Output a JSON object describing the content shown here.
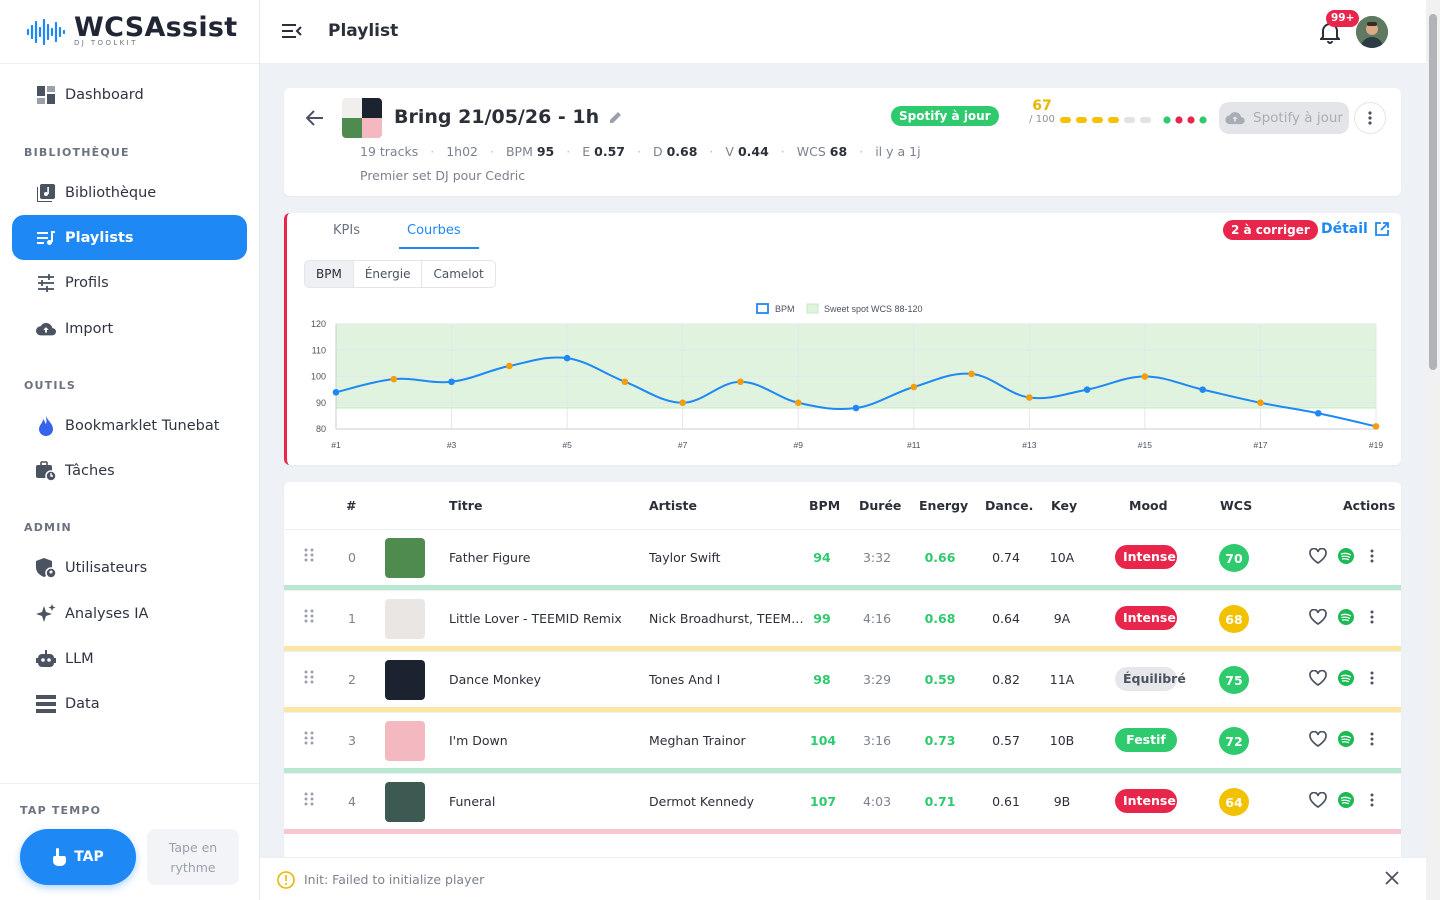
{
  "app": {
    "logo_text": "WCSAssist",
    "logo_sub": "DJ TOOLKIT"
  },
  "sidebar": {
    "items": [
      {
        "label": "Dashboard",
        "icon": "dashboard-icon"
      },
      {
        "section": "BIBLIOTHÈQUE"
      },
      {
        "label": "Bibliothèque",
        "icon": "library-icon"
      },
      {
        "label": "Playlists",
        "icon": "playlist-icon",
        "active": true
      },
      {
        "label": "Profils",
        "icon": "sliders-icon"
      },
      {
        "label": "Import",
        "icon": "cloud-upload-icon"
      },
      {
        "section": "OUTILS"
      },
      {
        "label": "Bookmarklet Tunebat",
        "icon": "flame-icon"
      },
      {
        "label": "Tâches",
        "icon": "tasks-icon"
      },
      {
        "section": "ADMIN"
      },
      {
        "label": "Utilisateurs",
        "icon": "users-icon"
      },
      {
        "label": "Analyses IA",
        "icon": "sparkles-icon"
      },
      {
        "label": "LLM",
        "icon": "robot-icon"
      },
      {
        "label": "Data",
        "icon": "data-icon"
      }
    ],
    "tap": {
      "section": "TAP TEMPO",
      "button": "TAP",
      "hint": "Tape en rythme"
    }
  },
  "topbar": {
    "title": "Playlist",
    "notif_badge": "99+"
  },
  "playlist": {
    "title": "Bring 21/05/26 - 1h",
    "tracks": "19 tracks",
    "duration": "1h02",
    "bpm_label": "BPM",
    "bpm": "95",
    "e_label": "E",
    "e": "0.57",
    "d_label": "D",
    "d": "0.68",
    "v_label": "V",
    "v": "0.44",
    "wcs_label": "WCS",
    "wcs": "68",
    "updated": "il y a 1j",
    "description": "Premier set DJ pour Cedric",
    "spotify_badge": "Spotify à jour",
    "score": "67",
    "score_max": "/ 100",
    "spotify_button": "Spotify à jour",
    "colors": {
      "yellow": "#f2c200",
      "grey": "#e0e2e6",
      "green": "#2fc96e",
      "red": "#e8254a"
    }
  },
  "chart_panel": {
    "tabs": [
      "KPIs",
      "Courbes"
    ],
    "active_tab": "Courbes",
    "fix_badge": "2 à corriger",
    "detail_link": "Détail",
    "segments": [
      "BPM",
      "Énergie",
      "Camelot"
    ],
    "active_segment": "BPM"
  },
  "chart_data": {
    "type": "line",
    "x": [
      "#1",
      "#2",
      "#3",
      "#4",
      "#5",
      "#6",
      "#7",
      "#8",
      "#9",
      "#10",
      "#11",
      "#12",
      "#13",
      "#14",
      "#15",
      "#16",
      "#17",
      "#18",
      "#19"
    ],
    "x_tick_labels": [
      "#1",
      "#3",
      "#5",
      "#7",
      "#9",
      "#11",
      "#13",
      "#15",
      "#17",
      "#19"
    ],
    "series": [
      {
        "name": "BPM",
        "values": [
          94,
          99,
          98,
          104,
          107,
          98,
          90,
          98,
          90,
          88,
          96,
          101,
          92,
          95,
          100,
          95,
          90,
          86,
          81
        ]
      }
    ],
    "point_colors": [
      "blue",
      "orange",
      "blue",
      "orange",
      "blue",
      "orange",
      "orange",
      "orange",
      "orange",
      "blue",
      "orange",
      "orange",
      "orange",
      "blue",
      "orange",
      "blue",
      "orange",
      "blue",
      "orange"
    ],
    "band": {
      "name": "Sweet spot WCS 88-120",
      "from": 88,
      "to": 120
    },
    "ylim": [
      80,
      120
    ],
    "yticks": [
      80,
      90,
      100,
      110,
      120
    ],
    "legend": "top-center",
    "grid": true,
    "colors": {
      "line": "#1e88f5",
      "point_alt": "#f59e0b",
      "band": "#dff3de"
    }
  },
  "table": {
    "headers": [
      "#",
      "Titre",
      "Artiste",
      "BPM",
      "Durée",
      "Energy",
      "Dance.",
      "Key",
      "Mood",
      "WCS",
      "Actions"
    ],
    "rows": [
      {
        "num": "0",
        "title": "Father Figure",
        "artist": "Taylor Swift",
        "bpm": "94",
        "duration": "3:32",
        "energy": "0.66",
        "dance": "0.74",
        "key": "10A",
        "mood": "Intense",
        "mood_color": "#e8254a",
        "wcs": "70",
        "wcs_color": "#2fc96e",
        "bar_color": "#b8e8cf",
        "thumb_color": "#4f8b4e"
      },
      {
        "num": "1",
        "title": "Little Lover - TEEMID Remix",
        "artist": "Nick Broadhurst, TEEM…",
        "bpm": "99",
        "duration": "4:16",
        "energy": "0.68",
        "dance": "0.64",
        "key": "9A",
        "mood": "Intense",
        "mood_color": "#e8254a",
        "wcs": "68",
        "wcs_color": "#f2c200",
        "bar_color": "#fbe7a3",
        "thumb_color": "#e9e6e3"
      },
      {
        "num": "2",
        "title": "Dance Monkey",
        "artist": "Tones And I",
        "bpm": "98",
        "duration": "3:29",
        "energy": "0.59",
        "dance": "0.82",
        "key": "11A",
        "mood": "Équilibré",
        "mood_color": "#e6e7ea",
        "wcs": "75",
        "wcs_color": "#2fc96e",
        "bar_color": "#fbe7a3",
        "thumb_color": "#1c2330"
      },
      {
        "num": "3",
        "title": "I'm Down",
        "artist": "Meghan Trainor",
        "bpm": "104",
        "duration": "3:16",
        "energy": "0.73",
        "dance": "0.57",
        "key": "10B",
        "mood": "Festif",
        "mood_color": "#2fc96e",
        "wcs": "72",
        "wcs_color": "#2fc96e",
        "bar_color": "#b8e8cf",
        "thumb_color": "#f3b8c0"
      },
      {
        "num": "4",
        "title": "Funeral",
        "artist": "Dermot Kennedy",
        "bpm": "107",
        "duration": "4:03",
        "energy": "0.71",
        "dance": "0.61",
        "key": "9B",
        "mood": "Intense",
        "mood_color": "#e8254a",
        "wcs": "64",
        "wcs_color": "#f2c200",
        "bar_color": "#f7c6cf",
        "thumb_color": "#3d5a52"
      }
    ]
  },
  "snackbar": {
    "message": "Init: Failed to initialize player"
  }
}
